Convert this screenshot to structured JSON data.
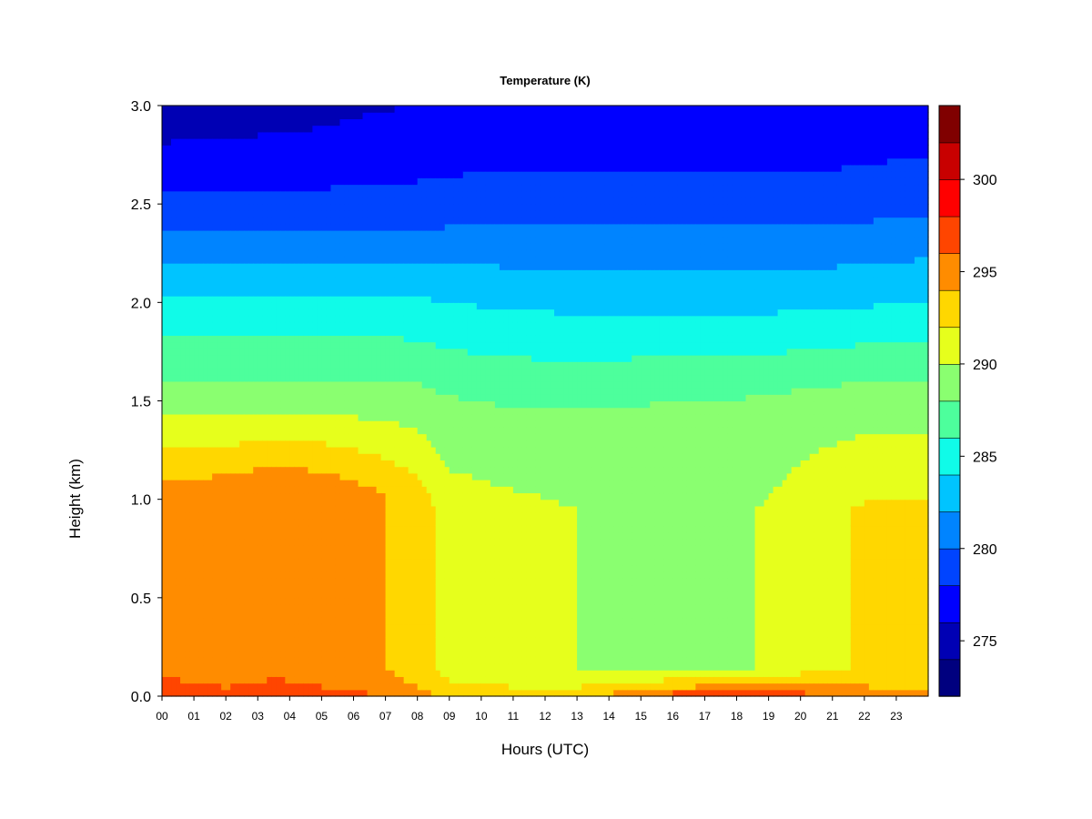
{
  "chart_data": {
    "type": "heatmap",
    "title": "Temperature (K)",
    "xlabel": "Hours (UTC)",
    "ylabel": "Height (km)",
    "xlim": [
      0,
      24
    ],
    "ylim": [
      0.0,
      3.0
    ],
    "x_ticks": [
      "00",
      "01",
      "02",
      "03",
      "04",
      "05",
      "06",
      "07",
      "08",
      "09",
      "10",
      "11",
      "12",
      "13",
      "14",
      "15",
      "16",
      "17",
      "18",
      "19",
      "20",
      "21",
      "22",
      "23"
    ],
    "y_ticks": [
      "0.0",
      "0.5",
      "1.0",
      "1.5",
      "2.0",
      "2.5",
      "3.0"
    ],
    "colorbar": {
      "range": [
        272,
        304
      ],
      "step": 2,
      "ticks": [
        275,
        280,
        285,
        290,
        295,
        300
      ],
      "colors": [
        "#00007f",
        "#0000b4",
        "#0000ff",
        "#0044ff",
        "#0084ff",
        "#00c4ff",
        "#10fbe8",
        "#4dff9c",
        "#8aff70",
        "#e6ff1c",
        "#ffd700",
        "#ff8c00",
        "#ff4500",
        "#ff0000",
        "#c80000",
        "#800000"
      ]
    },
    "profile_model": {
      "hours": [
        0,
        2,
        3.5,
        5,
        6.5,
        8,
        9,
        11,
        13,
        14.5,
        16,
        17.5,
        19,
        20.5,
        22,
        24
      ],
      "surface_temperature_K": [
        299,
        297,
        297,
        296.8,
        296.5,
        295,
        294,
        293.5,
        294,
        296,
        298.5,
        299.5,
        298.5,
        297.5,
        296,
        295
      ],
      "mixed_layer_temperature_K": [
        295,
        295,
        295.7,
        295.3,
        294.5,
        293,
        291,
        290.5,
        290,
        289.7,
        289.4,
        289.4,
        290.2,
        291.5,
        292.2,
        292.2
      ],
      "mixed_layer_top_km": [
        1.0,
        1.05,
        1.05,
        1.05,
        1.02,
        1.0,
        0.95,
        0.95,
        0.95,
        0.95,
        0.95,
        0.95,
        0.95,
        0.95,
        0.95,
        0.95
      ],
      "temperature_at_1_5km_K": [
        289,
        289,
        289,
        289,
        289,
        288.8,
        288.2,
        287.8,
        287.8,
        287.9,
        288,
        288,
        288.3,
        288.7,
        289,
        289
      ],
      "temperature_at_2_0km_K": [
        284.5,
        284.5,
        284.5,
        284.5,
        284.5,
        284.3,
        284,
        283.7,
        283.5,
        283.5,
        283.5,
        283.5,
        283.5,
        283.6,
        283.8,
        284
      ],
      "temperature_at_2_5km_K": [
        278.5,
        278.5,
        278.5,
        278.5,
        278.6,
        278.6,
        278.8,
        279,
        279,
        279,
        279,
        279,
        279,
        279,
        279.2,
        279.5
      ],
      "temperature_at_3_0km_K": [
        274.5,
        274.8,
        275,
        275.3,
        275.8,
        276,
        276,
        276.2,
        276.2,
        276.2,
        276,
        276,
        276,
        276,
        276.2,
        276.5
      ]
    }
  }
}
